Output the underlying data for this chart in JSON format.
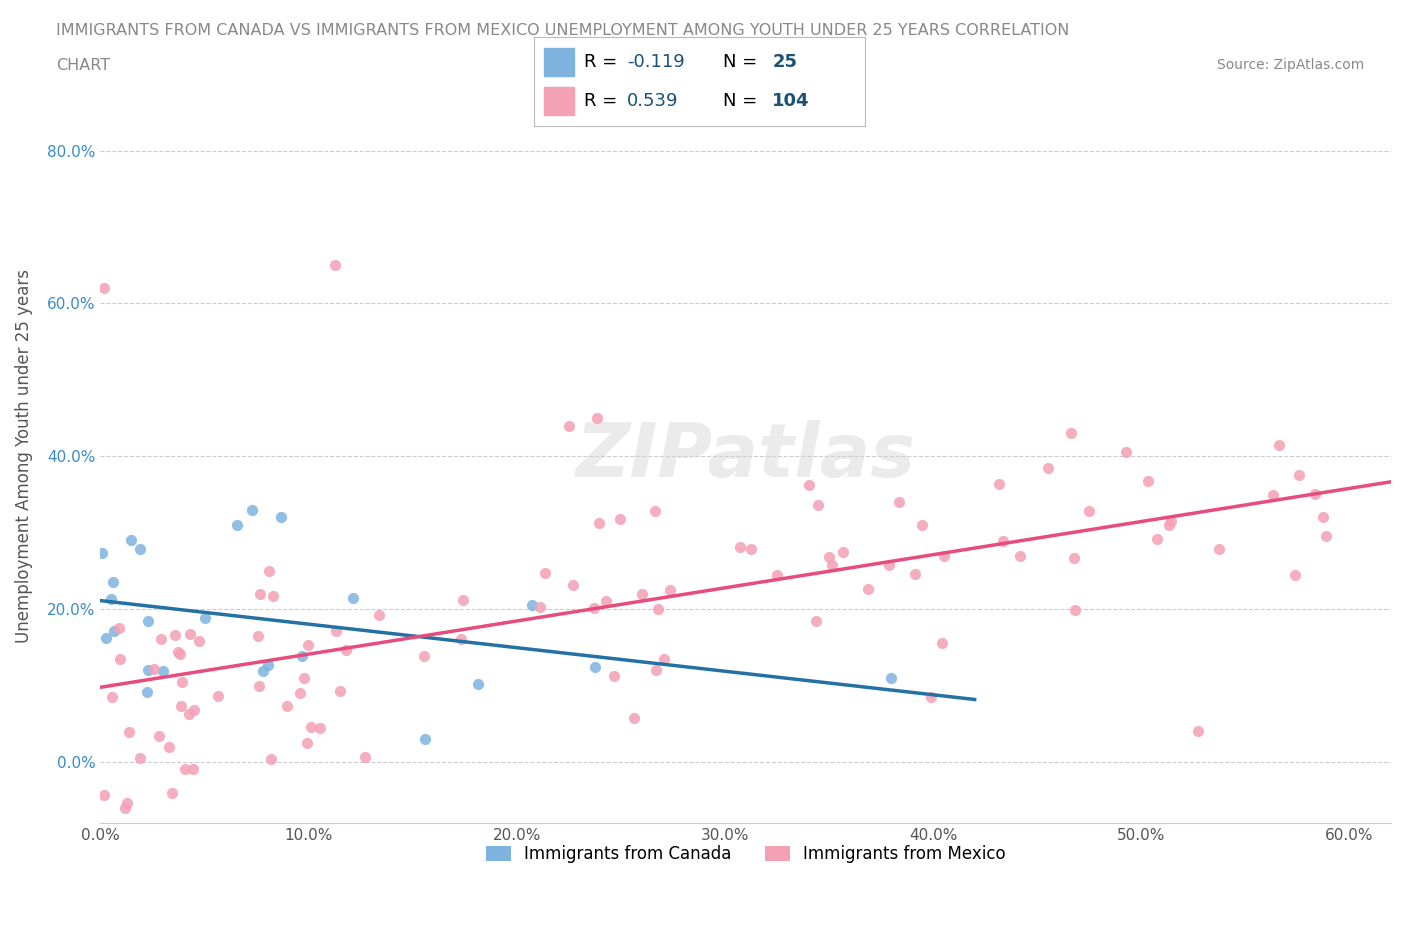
{
  "title_line1": "IMMIGRANTS FROM CANADA VS IMMIGRANTS FROM MEXICO UNEMPLOYMENT AMONG YOUTH UNDER 25 YEARS CORRELATION",
  "title_line2": "CHART",
  "source": "Source: ZipAtlas.com",
  "ylabel": "Unemployment Among Youth under 25 years",
  "xlim": [
    0.0,
    0.62
  ],
  "ylim": [
    -0.08,
    0.88
  ],
  "xticks": [
    0.0,
    0.1,
    0.2,
    0.3,
    0.4,
    0.5,
    0.6
  ],
  "xticklabels": [
    "0.0%",
    "10.0%",
    "20.0%",
    "30.0%",
    "40.0%",
    "50.0%",
    "60.0%"
  ],
  "yticks": [
    0.0,
    0.2,
    0.4,
    0.6,
    0.8
  ],
  "yticklabels": [
    "0.0%",
    "20.0%",
    "40.0%",
    "60.0%",
    "80.0%"
  ],
  "canada_color": "#7eb3e0",
  "mexico_color": "#f4a0b5",
  "canada_R": -0.119,
  "canada_N": 25,
  "mexico_R": 0.539,
  "mexico_N": 104,
  "watermark": "ZIPatlas",
  "legend_R_color": "#1a5276",
  "legend_N_color": "#1a5276",
  "trendline_canada_color": "#2471a3",
  "trendline_mexico_color": "#e74c7c",
  "grid_color": "#cccccc",
  "background_color": "#ffffff",
  "title_color": "#888888",
  "axis_label_color": "#555555",
  "ytick_color": "#3a8bc7",
  "xtick_color": "#555555"
}
